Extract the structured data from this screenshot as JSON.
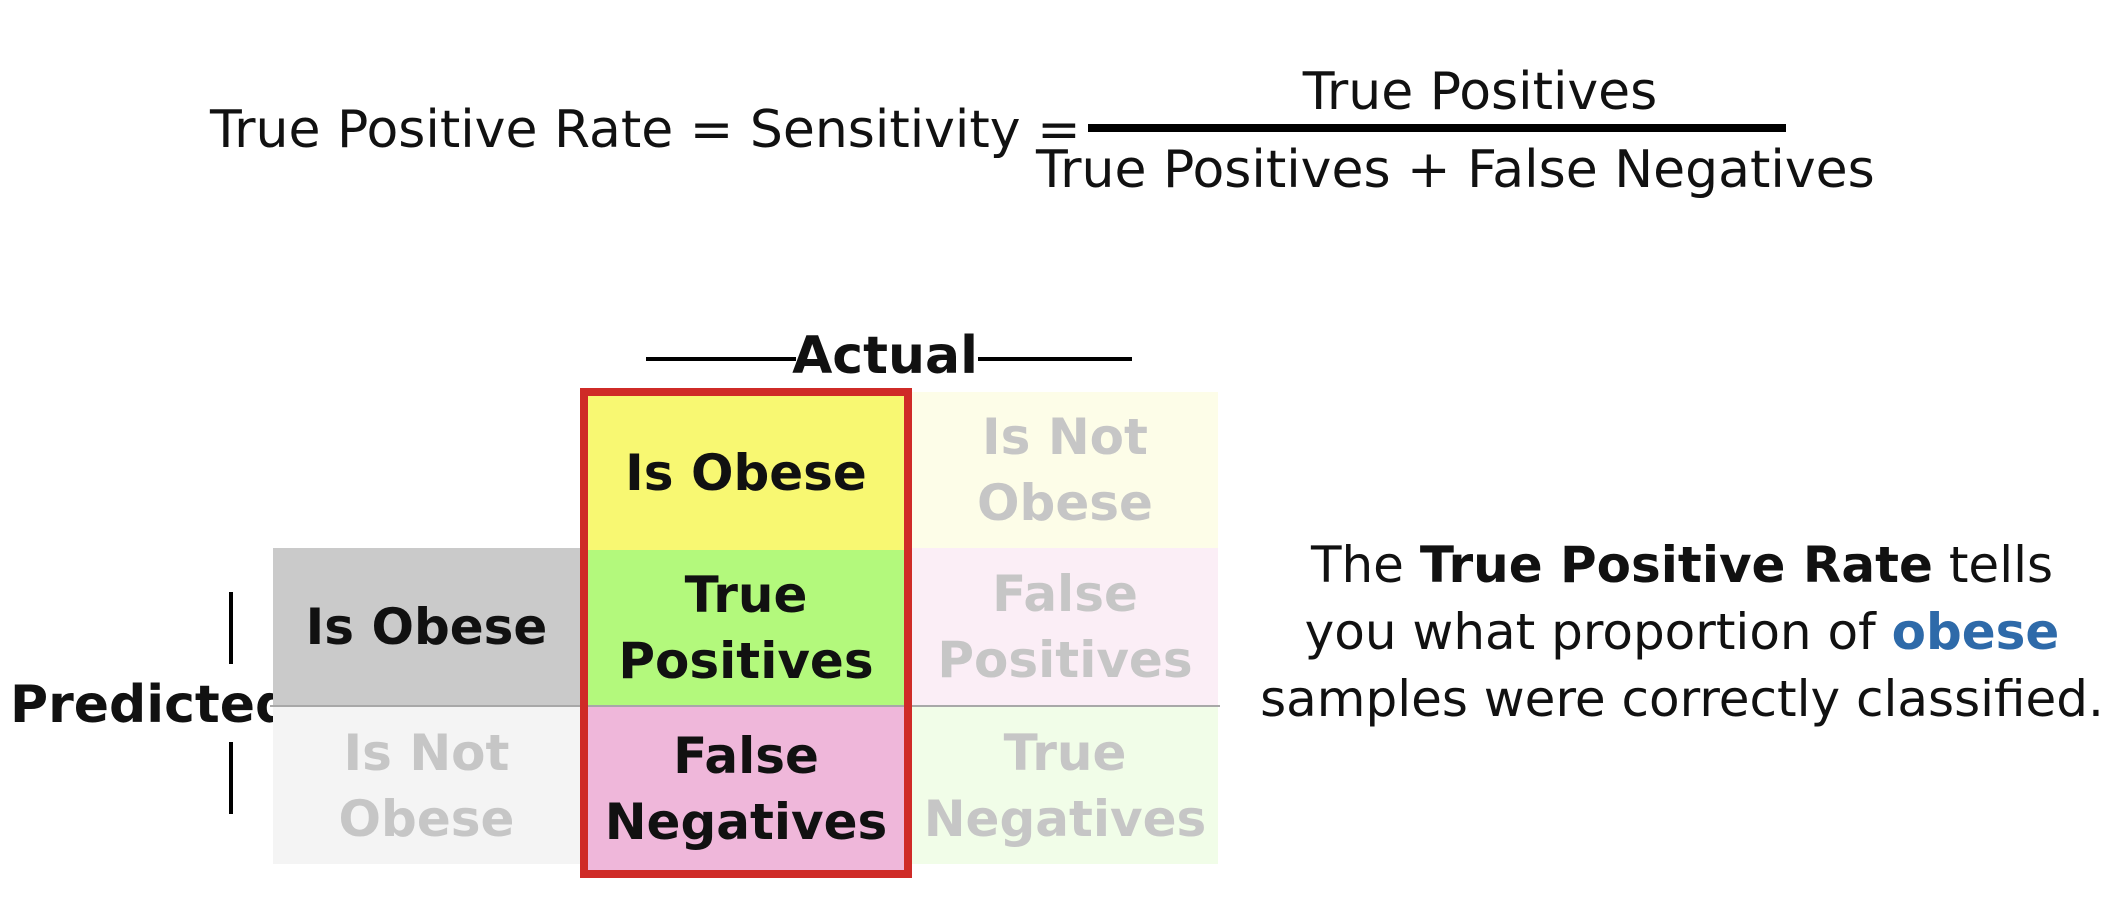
{
  "formula": {
    "lhs": "True Positive Rate = Sensitivity =",
    "numerator": "True Positives",
    "denominator": "True Positives + False Negatives"
  },
  "matrix": {
    "actual_label": "Actual",
    "predicted_label": "Predicted",
    "col_headers": {
      "positive": "Is Obese",
      "negative": [
        "Is Not",
        "Obese"
      ]
    },
    "row_headers": {
      "positive": "Is Obese",
      "negative": [
        "Is Not",
        "Obese"
      ]
    },
    "cells": {
      "tp": [
        "True",
        "Positives"
      ],
      "fp": [
        "False",
        "Positives"
      ],
      "fn": [
        "False",
        "Negatives"
      ],
      "tn": [
        "True",
        "Negatives"
      ]
    },
    "highlight_color": "#cf2b27"
  },
  "description": {
    "part1": "The ",
    "bold": "True Positive Rate",
    "part2": " tells you what proportion of ",
    "accent": "obese",
    "part3": " samples were correctly classified.",
    "accent_color": "#2e6aa9"
  }
}
